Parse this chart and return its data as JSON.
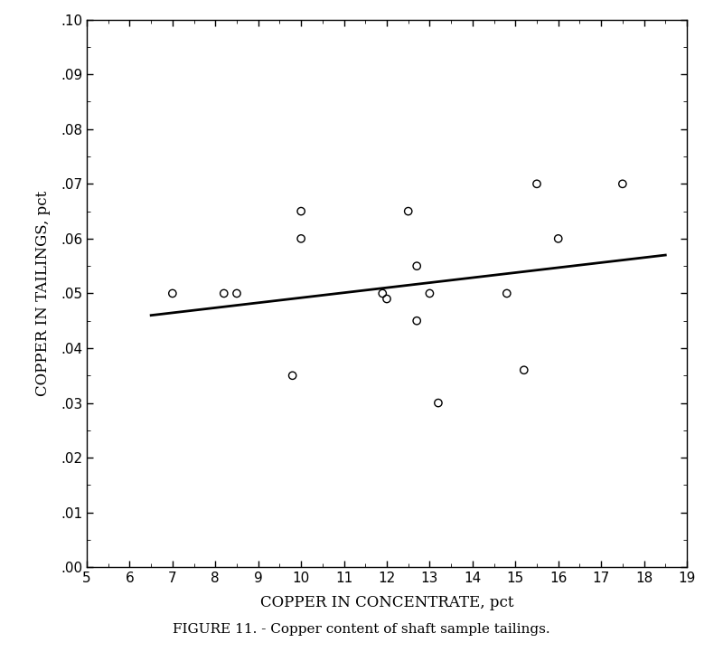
{
  "scatter_x": [
    7.0,
    8.2,
    8.5,
    9.8,
    10.0,
    10.0,
    11.9,
    12.0,
    12.5,
    12.7,
    12.7,
    13.0,
    13.2,
    14.8,
    15.2,
    15.5,
    16.0,
    17.5
  ],
  "scatter_y": [
    0.05,
    0.05,
    0.05,
    0.035,
    0.06,
    0.065,
    0.05,
    0.049,
    0.065,
    0.055,
    0.045,
    0.05,
    0.03,
    0.05,
    0.036,
    0.07,
    0.06,
    0.07
  ],
  "trend_x": [
    6.5,
    18.5
  ],
  "trend_y": [
    0.046,
    0.057
  ],
  "xlim": [
    5,
    19
  ],
  "ylim": [
    0.0,
    0.1
  ],
  "xticks": [
    5,
    6,
    7,
    8,
    9,
    10,
    11,
    12,
    13,
    14,
    15,
    16,
    17,
    18,
    19
  ],
  "yticks": [
    0.0,
    0.01,
    0.02,
    0.03,
    0.04,
    0.05,
    0.06,
    0.07,
    0.08,
    0.09,
    0.1
  ],
  "xlabel": "COPPER IN CONCENTRATE, pct",
  "ylabel": "COPPER IN TAILINGS, pct",
  "caption": "FIGURE 11. - Copper content of shaft sample tailings.",
  "marker_size": 6,
  "marker_color": "black",
  "line_color": "black",
  "line_width": 2.0,
  "background_color": "white"
}
